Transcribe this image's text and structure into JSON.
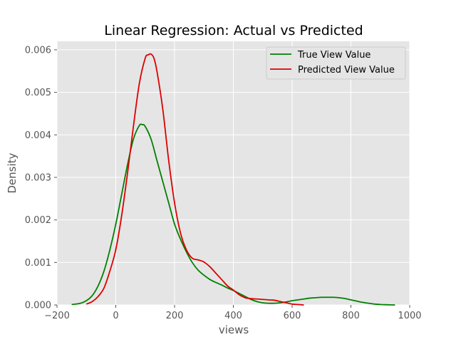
{
  "chart_data": {
    "type": "line",
    "title": "Linear Regression: Actual vs Predicted",
    "xlabel": "views",
    "ylabel": "Density",
    "xlim": [
      -200,
      1000
    ],
    "ylim": [
      0,
      0.0062
    ],
    "xticks": [
      -200,
      0,
      200,
      400,
      600,
      800,
      1000
    ],
    "xtick_labels": [
      "−200",
      "0",
      "200",
      "400",
      "600",
      "800",
      "1000"
    ],
    "yticks": [
      0,
      0.001,
      0.002,
      0.003,
      0.004,
      0.005,
      0.006
    ],
    "ytick_labels": [
      "0.000",
      "0.001",
      "0.002",
      "0.003",
      "0.004",
      "0.005",
      "0.006"
    ],
    "grid": true,
    "legend_position": "top-right",
    "series": [
      {
        "name": "True View Value",
        "color": "#008000",
        "x": [
          -150,
          -120,
          -100,
          -80,
          -60,
          -40,
          -20,
          0,
          20,
          40,
          60,
          80,
          90,
          100,
          120,
          140,
          160,
          180,
          200,
          220,
          240,
          260,
          280,
          300,
          320,
          340,
          360,
          380,
          400,
          420,
          440,
          460,
          480,
          500,
          520,
          540,
          560,
          580,
          600,
          620,
          640,
          660,
          680,
          700,
          720,
          740,
          760,
          780,
          800,
          820,
          840,
          860,
          880,
          900,
          920,
          950
        ],
        "y": [
          1e-05,
          4e-05,
          0.0001,
          0.00022,
          0.00045,
          0.0008,
          0.0013,
          0.0019,
          0.0026,
          0.0033,
          0.0039,
          0.00422,
          0.00424,
          0.0042,
          0.0039,
          0.0034,
          0.0029,
          0.0024,
          0.0019,
          0.00155,
          0.00125,
          0.001,
          0.00082,
          0.0007,
          0.0006,
          0.00053,
          0.00047,
          0.0004,
          0.00034,
          0.00027,
          0.0002,
          0.00013,
          8e-05,
          5e-05,
          4e-05,
          4e-05,
          5e-05,
          7e-05,
          0.0001,
          0.00012,
          0.00014,
          0.00016,
          0.00017,
          0.00018,
          0.00018,
          0.00018,
          0.00017,
          0.00015,
          0.00012,
          9e-05,
          6e-05,
          4e-05,
          2e-05,
          1e-05,
          5e-06,
          0.0
        ]
      },
      {
        "name": "Predicted View Value",
        "color": "#dd0000",
        "x": [
          -100,
          -80,
          -60,
          -40,
          -20,
          0,
          20,
          40,
          60,
          80,
          100,
          110,
          120,
          130,
          140,
          160,
          180,
          200,
          220,
          240,
          260,
          280,
          300,
          320,
          340,
          360,
          380,
          400,
          420,
          440,
          460,
          480,
          500,
          520,
          540,
          560,
          580,
          600,
          620,
          640
        ],
        "y": [
          2e-05,
          8e-05,
          0.0002,
          0.0004,
          0.0008,
          0.0013,
          0.0021,
          0.0031,
          0.0042,
          0.0052,
          0.0058,
          0.00588,
          0.0059,
          0.0058,
          0.0055,
          0.0046,
          0.0034,
          0.0024,
          0.0017,
          0.0013,
          0.0011,
          0.00106,
          0.00101,
          0.0009,
          0.00075,
          0.0006,
          0.00045,
          0.00035,
          0.00024,
          0.00017,
          0.00015,
          0.00014,
          0.00013,
          0.00012,
          0.00011,
          8e-05,
          5e-05,
          2e-05,
          1e-05,
          0.0
        ]
      }
    ]
  }
}
